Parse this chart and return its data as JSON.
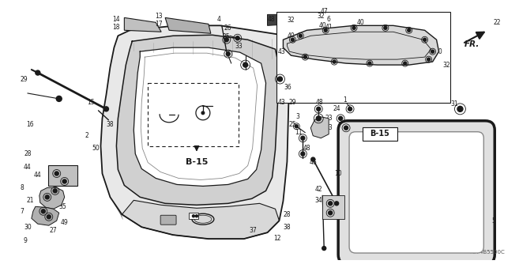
{
  "background_color": "#ffffff",
  "diagram_code": "TG74B5500C",
  "fr_label": "FR.",
  "color_main": "#1a1a1a",
  "color_gray": "#888888",
  "color_light": "#cccccc"
}
